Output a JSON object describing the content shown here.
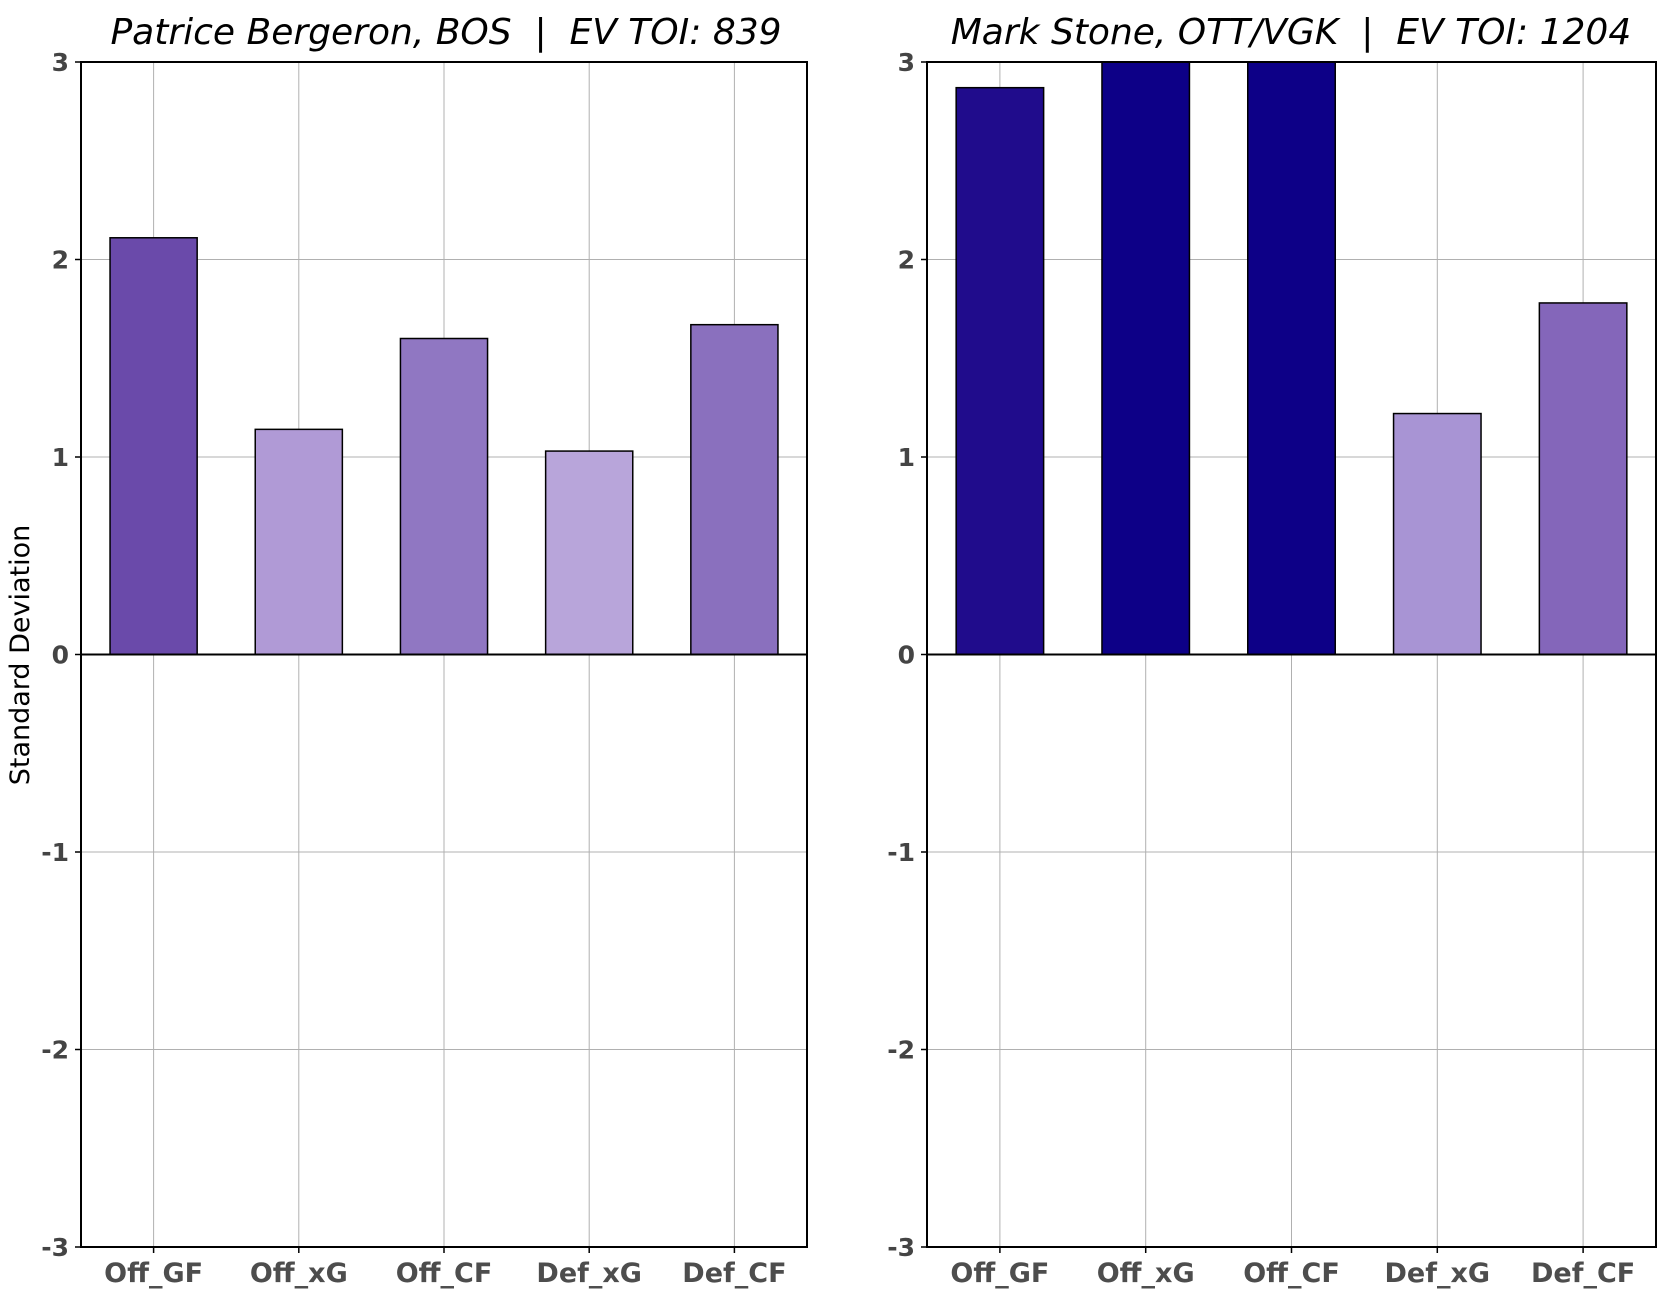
{
  "chart_data": [
    {
      "type": "bar",
      "title": "Patrice Bergeron, BOS  |  EV TOI: 839",
      "ylabel": "Standard Deviation",
      "xlabel": "",
      "categories": [
        "Off_GF",
        "Off_xG",
        "Off_CF",
        "Def_xG",
        "Def_CF"
      ],
      "values": [
        2.11,
        1.14,
        1.6,
        1.03,
        1.67
      ],
      "colors": [
        "#6a4aaa",
        "#b09ad6",
        "#9077c2",
        "#b8a5da",
        "#8a70be"
      ],
      "ylim": [
        -3,
        3
      ],
      "yticks": [
        "3",
        "2",
        "1",
        "0",
        "-1",
        "-2",
        "-3"
      ],
      "grid": true
    },
    {
      "type": "bar",
      "title": "Mark Stone, OTT/VGK  |  EV TOI: 1204",
      "ylabel": "",
      "xlabel": "",
      "categories": [
        "Off_GF",
        "Off_xG",
        "Off_CF",
        "Def_xG",
        "Def_CF"
      ],
      "values": [
        2.87,
        3.0,
        3.0,
        1.22,
        1.78
      ],
      "colors": [
        "#200c8c",
        "#0d0087",
        "#0d0087",
        "#a894d4",
        "#8466ba"
      ],
      "ylim": [
        -3,
        3
      ],
      "yticks": [
        "3",
        "2",
        "1",
        "0",
        "-1",
        "-2",
        "-3"
      ],
      "grid": true
    }
  ]
}
